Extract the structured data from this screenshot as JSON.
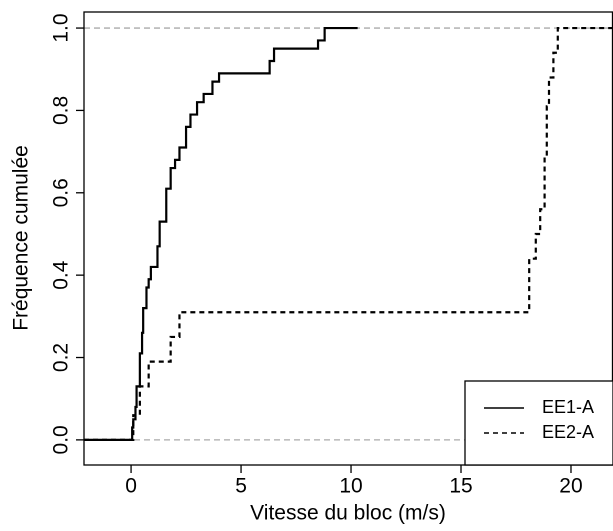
{
  "chart_data": {
    "type": "step",
    "xlabel": "Vitesse du bloc (m/s)",
    "ylabel": "Fréquence cumulée",
    "xlim": [
      -2.14,
      21.91
    ],
    "ylim": [
      -0.061,
      1.039
    ],
    "xticks": [
      0,
      5,
      10,
      15,
      20
    ],
    "yticks": [
      {
        "value": 0,
        "label": "0.0"
      },
      {
        "value": 0.2,
        "label": "0.2"
      },
      {
        "value": 0.4,
        "label": "0.4"
      },
      {
        "value": 0.6,
        "label": "0.6"
      },
      {
        "value": 0.8,
        "label": "0.8"
      },
      {
        "value": 1,
        "label": "1.0"
      }
    ],
    "hlines": [
      0,
      1
    ],
    "hline_color": "#aaaaaa",
    "legend": "bottom-right",
    "series": [
      {
        "name": "EE1-A",
        "color": "#000000",
        "dash": "solid",
        "x": [
          -2.14,
          0.05,
          0.1,
          0.2,
          0.25,
          0.4,
          0.5,
          0.55,
          0.7,
          0.8,
          0.9,
          1.2,
          1.3,
          1.6,
          1.8,
          2.0,
          2.2,
          2.5,
          2.7,
          3.0,
          3.3,
          3.7,
          4.0,
          6.3,
          6.5,
          8.5,
          8.8,
          10.3
        ],
        "values": [
          0,
          0.03,
          0.05,
          0.08,
          0.13,
          0.21,
          0.26,
          0.32,
          0.37,
          0.39,
          0.42,
          0.47,
          0.53,
          0.61,
          0.66,
          0.68,
          0.71,
          0.76,
          0.79,
          0.82,
          0.84,
          0.87,
          0.89,
          0.92,
          0.95,
          0.97,
          1.0,
          1.0
        ]
      },
      {
        "name": "EE2-A",
        "color": "#000000",
        "dash": "dashed",
        "x": [
          -2.14,
          0.1,
          0.4,
          0.8,
          1.8,
          2.2,
          18.1,
          18.4,
          18.6,
          18.8,
          18.9,
          19.0,
          19.2,
          19.4,
          21.91
        ],
        "values": [
          0,
          0.06,
          0.13,
          0.19,
          0.25,
          0.31,
          0.44,
          0.5,
          0.56,
          0.69,
          0.81,
          0.88,
          0.94,
          1.0,
          1.0
        ]
      }
    ]
  }
}
